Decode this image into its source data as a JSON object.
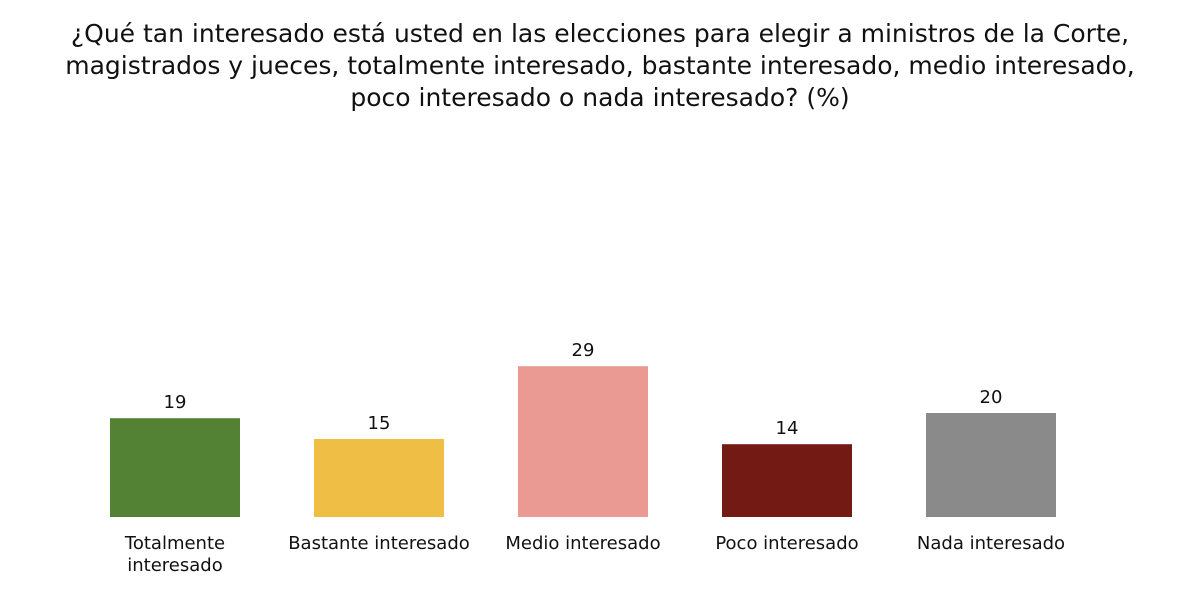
{
  "chart_data": {
    "type": "bar",
    "title": "¿Qué tan interesado está usted en las elecciones para elegir a ministros de la Corte, magistrados y jueces, totalmente interesado, bastante interesado, medio interesado, poco interesado o nada interesado? (%)",
    "categories": [
      "Totalmente interesado",
      "Bastante interesado",
      "Medio interesado",
      "Poco interesado",
      "Nada interesado"
    ],
    "category_lines": [
      [
        "Totalmente",
        "interesado"
      ],
      [
        "Bastante interesado"
      ],
      [
        "Medio interesado"
      ],
      [
        "Poco interesado"
      ],
      [
        "Nada interesado"
      ]
    ],
    "values": [
      19,
      15,
      29,
      14,
      20
    ],
    "colors": [
      "#548235",
      "#EFBE44",
      "#EA9A93",
      "#731A14",
      "#8A8A8A"
    ],
    "xlabel": "",
    "ylabel": "",
    "grid": false,
    "legend": "none"
  }
}
